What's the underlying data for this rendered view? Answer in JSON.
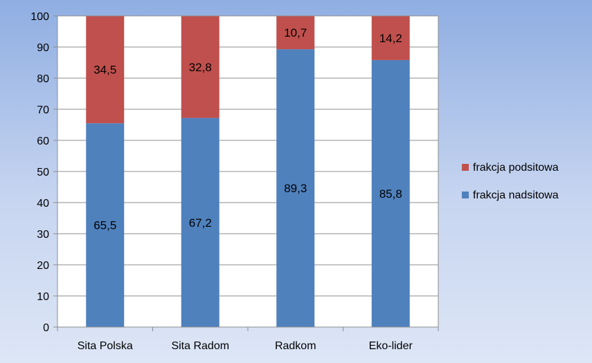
{
  "chart_data": {
    "type": "bar",
    "stacked": true,
    "title": "",
    "xlabel": "",
    "ylabel": "",
    "categories": [
      "Sita Polska",
      "Sita Radom",
      "Radkom",
      "Eko-lider"
    ],
    "series": [
      {
        "name": "frakcja nadsitowa",
        "values": [
          65.5,
          67.2,
          89.3,
          85.8
        ],
        "labels": [
          "65,5",
          "67,2",
          "89,3",
          "85,8"
        ],
        "color": "#4f81bd"
      },
      {
        "name": "frakcja podsitowa",
        "values": [
          34.5,
          32.8,
          10.7,
          14.2
        ],
        "labels": [
          "34,5",
          "32,8",
          "10,7",
          "14,2"
        ],
        "color": "#c0504d"
      }
    ],
    "ylim": [
      0,
      100
    ],
    "yticks": [
      0,
      10,
      20,
      30,
      40,
      50,
      60,
      70,
      80,
      90,
      100
    ],
    "grid": true,
    "legend": "right",
    "legend_order": [
      "frakcja podsitowa",
      "frakcja nadsitowa"
    ]
  }
}
